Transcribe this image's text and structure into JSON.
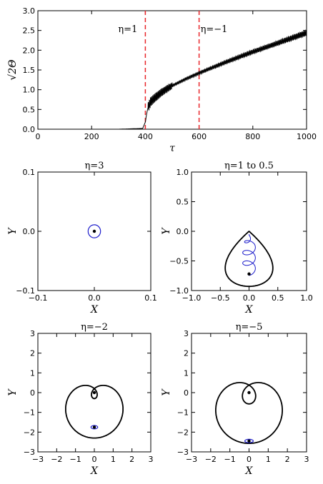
{
  "chart_data": [
    {
      "type": "line",
      "title": "",
      "xlabel": "τ",
      "ylabel": "√2Θ",
      "xlim": [
        0,
        1000
      ],
      "ylim": [
        0,
        3.0
      ],
      "xticks": [
        "0",
        "200",
        "400",
        "600",
        "800",
        "1000"
      ],
      "yticks": [
        "0.0",
        "0.5",
        "1.0",
        "1.5",
        "2.0",
        "2.5",
        "3.0"
      ],
      "series": [
        {
          "color": "#000000",
          "x": [
            0,
            100,
            200,
            300,
            390,
            400,
            405,
            410,
            420,
            440,
            460,
            480,
            500,
            550,
            600,
            650,
            700,
            750,
            800,
            850,
            900,
            950,
            1000
          ],
          "y": [
            0.0,
            0.0,
            0.0,
            0.0,
            0.02,
            0.18,
            0.4,
            0.55,
            0.7,
            0.82,
            0.93,
            1.02,
            1.1,
            1.27,
            1.42,
            1.56,
            1.7,
            1.83,
            1.96,
            2.08,
            2.2,
            2.32,
            2.44
          ]
        }
      ],
      "vlines": [
        {
          "x": 400,
          "color": "#e8262a",
          "label": "η=1"
        },
        {
          "x": 600,
          "color": "#e8262a",
          "label": "η=−1"
        }
      ],
      "grid": false
    },
    {
      "type": "line",
      "title": "η=3",
      "xlabel": "X",
      "ylabel": "Y",
      "xlim": [
        -0.1,
        0.1
      ],
      "ylim": [
        -0.1,
        0.1
      ],
      "xticks": [
        "−0.1",
        "0.0",
        "0.1"
      ],
      "yticks": [
        "−0.1",
        "0.0",
        "0.1"
      ],
      "curves": [
        {
          "color": "#1f1fcc",
          "shape": "circle",
          "cx": 0.0,
          "cy": 0.0,
          "r": 0.011
        }
      ],
      "points": [
        {
          "x": 0.0,
          "y": 0.0
        }
      ]
    },
    {
      "type": "line",
      "title": "η=1 to 0.5",
      "xlabel": "X",
      "ylabel": "Y",
      "xlim": [
        -1.0,
        1.0
      ],
      "ylim": [
        -1.0,
        1.0
      ],
      "xticks": [
        "−1.0",
        "−0.5",
        "0.0",
        "0.5",
        "1.0"
      ],
      "yticks": [
        "−1.0",
        "−0.5",
        "0.0",
        "0.5",
        "1.0"
      ],
      "curves": [
        {
          "color": "#000000",
          "shape": "teardrop",
          "tip": [
            0.0,
            0.0
          ],
          "bottom": -1.0,
          "halfwidth": 0.43
        },
        {
          "color": "#1f1fcc",
          "shape": "loops",
          "points": [
            [
              0.0,
              0.0
            ],
            [
              -0.02,
              -0.25
            ],
            [
              -0.1,
              -0.45
            ],
            [
              0.05,
              -0.52
            ],
            [
              -0.05,
              -0.62
            ],
            [
              0.07,
              -0.66
            ],
            [
              -0.06,
              -0.72
            ],
            [
              0.0,
              -0.72
            ]
          ]
        }
      ],
      "points": [
        {
          "x": 0.0,
          "y": -0.72
        }
      ]
    },
    {
      "type": "line",
      "title": "η=−2",
      "xlabel": "X",
      "ylabel": "Y",
      "xlim": [
        -3,
        3
      ],
      "ylim": [
        -3,
        3
      ],
      "xticks": [
        "−3",
        "−2",
        "−1",
        "0",
        "1",
        "2",
        "3"
      ],
      "yticks": [
        "−3",
        "−2",
        "−1",
        "0",
        "1",
        "2",
        "3"
      ],
      "curves": [
        {
          "color": "#000000",
          "shape": "limacon",
          "a": 1.0,
          "b": 1.5,
          "cy": 0.0
        },
        {
          "color": "#1f1fcc",
          "shape": "ellipse",
          "cx": 0.0,
          "cy": -1.75,
          "rx": 0.18,
          "ry": 0.05
        }
      ],
      "points": [
        {
          "x": 0.0,
          "y": 0.0
        },
        {
          "x": 0.0,
          "y": -1.75
        }
      ]
    },
    {
      "type": "line",
      "title": "η=−5",
      "xlabel": "X",
      "ylabel": "Y",
      "xlim": [
        -3,
        3
      ],
      "ylim": [
        -3,
        3
      ],
      "xticks": [
        "−3",
        "−2",
        "−1",
        "0",
        "1",
        "2",
        "3"
      ],
      "yticks": [
        "−3",
        "−2",
        "−1",
        "0",
        "1",
        "2",
        "3"
      ],
      "curves": [
        {
          "color": "#000000",
          "shape": "limacon",
          "a": 1.0,
          "b": 1.95,
          "cy": 0.0
        },
        {
          "color": "#1f1fcc",
          "shape": "ellipse",
          "cx": 0.0,
          "cy": -2.45,
          "rx": 0.22,
          "ry": 0.05
        }
      ],
      "points": [
        {
          "x": 0.0,
          "y": 0.0
        },
        {
          "x": 0.0,
          "y": -2.45
        }
      ]
    }
  ]
}
